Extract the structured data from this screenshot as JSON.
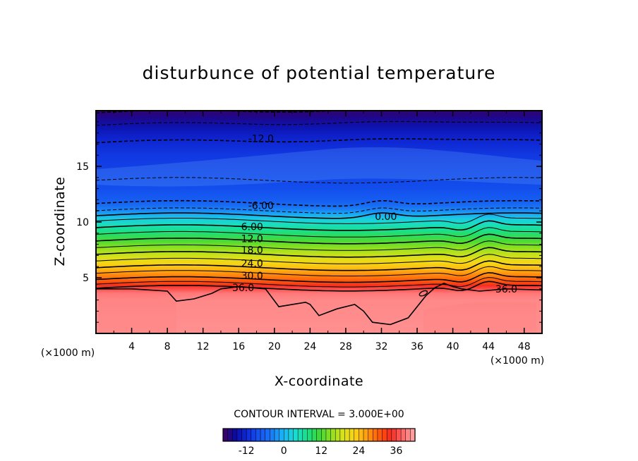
{
  "chart_data": {
    "type": "heatmap",
    "title": "disturbunce of potential temperature",
    "xlabel": "X-coordinate",
    "ylabel": "Z-coordinate",
    "x_unit": "(×1000 m)",
    "xlim": [
      0,
      50
    ],
    "ylim": [
      0,
      20
    ],
    "x_ticks": [
      "4",
      "8",
      "12",
      "16",
      "20",
      "24",
      "28",
      "32",
      "36",
      "40",
      "44",
      "48"
    ],
    "y_ticks": [
      "5",
      "10",
      "15"
    ],
    "contour_interval_text": "CONTOUR INTERVAL = 3.000E+00",
    "contour_labels": [
      "-12.0",
      "-6.00",
      "0.00",
      "6.00",
      "12.0",
      "18.0",
      "24.0",
      "30.0",
      "36.0",
      "36.0"
    ],
    "colorbar": {
      "range": [
        -19.5,
        42
      ],
      "ticks": [
        "-12",
        "0",
        "12",
        "24",
        "36"
      ]
    },
    "profile_z_km": [
      0,
      3.0,
      3.6,
      4.0,
      4.3,
      4.6,
      5.0,
      5.4,
      5.8,
      6.3,
      6.8,
      7.3,
      7.8,
      8.3,
      8.8,
      9.3,
      9.8,
      10.3,
      10.7,
      11.1,
      11.5,
      12.0,
      13.0,
      14.5,
      16.0,
      17.5,
      18.5,
      19.4,
      20.0
    ],
    "profile_values": [
      40.5,
      40.0,
      39.0,
      36.5,
      34.0,
      31.5,
      29.0,
      27.0,
      24.5,
      22.0,
      19.5,
      17.0,
      14.5,
      12.0,
      9.5,
      7.0,
      4.5,
      2.0,
      -1.0,
      -3.5,
      -5.5,
      -7.0,
      -8.5,
      -9.5,
      -10.5,
      -12.5,
      -14.5,
      -17.0,
      -18.5
    ],
    "colors": {
      "palette": [
        "#400060",
        "#0c0aa0",
        "#0f2ad9",
        "#1454f0",
        "#1a78f5",
        "#19b4f5",
        "#1adcd2",
        "#18e08a",
        "#3ad83a",
        "#8fe01e",
        "#d6e21a",
        "#fdd214",
        "#ff9b10",
        "#ff5a0a",
        "#f52a20",
        "#ff6a6a",
        "#ffa8a8"
      ]
    }
  }
}
